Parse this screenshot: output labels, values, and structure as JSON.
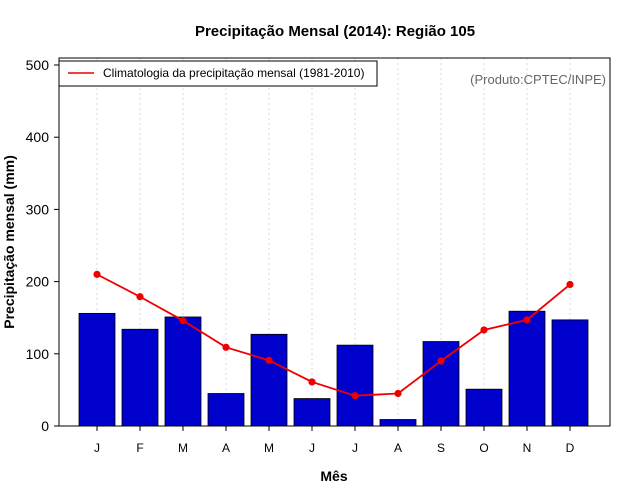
{
  "chart_data": {
    "type": "bar",
    "title": "Precipitação Mensal (2014): Região 105",
    "xlabel": "Mês",
    "ylabel": "Precipitação mensal (mm)",
    "ylim": [
      0,
      500
    ],
    "yticks": [
      0,
      100,
      200,
      300,
      400,
      500
    ],
    "categories": [
      "J",
      "F",
      "M",
      "A",
      "M",
      "J",
      "J",
      "A",
      "S",
      "O",
      "N",
      "D"
    ],
    "series": [
      {
        "name": "Precipitação mensal (2014)",
        "type": "bar",
        "color": "#0000CD",
        "values": [
          156,
          134,
          151,
          45,
          127,
          38,
          112,
          9,
          117,
          51,
          159,
          147
        ]
      },
      {
        "name": "Climatologia da precipitação mensal (1981-2010)",
        "type": "line",
        "color": "#EE0000",
        "values": [
          210,
          179,
          146,
          109,
          91,
          61,
          42,
          45,
          90,
          133,
          147,
          196
        ]
      }
    ],
    "legend": {
      "position": "top-left",
      "label": "Climatologia da precipitação mensal (1981-2010)"
    },
    "annotation": "(Produto:CPTEC/INPE)",
    "grid": "vertical-dotted"
  }
}
